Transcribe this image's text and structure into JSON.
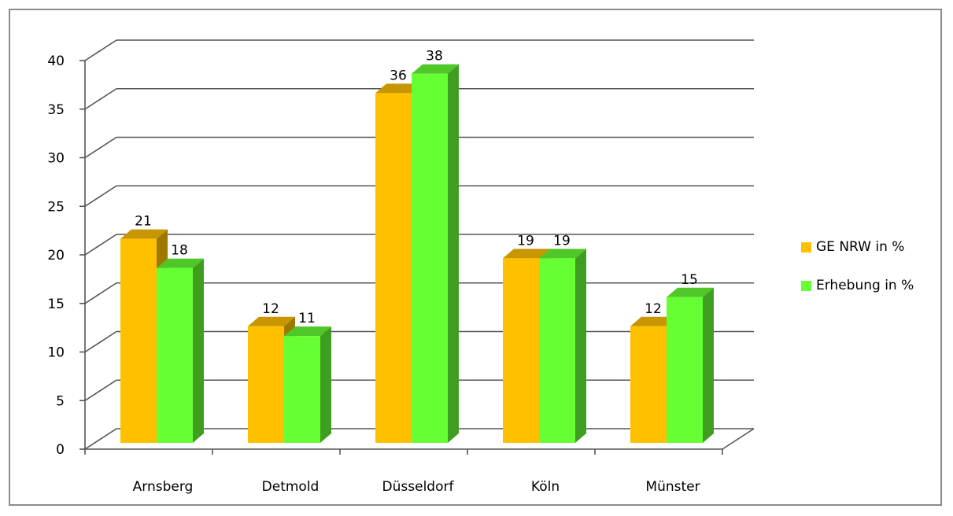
{
  "chart_data": {
    "type": "bar",
    "style": "3d-clustered-column",
    "categories": [
      "Arnsberg",
      "Detmold",
      "Düsseldorf",
      "Köln",
      "Münster"
    ],
    "series": [
      {
        "name": "GE NRW in %",
        "values": [
          21,
          12,
          36,
          19,
          12
        ],
        "labels": [
          "21",
          "12",
          "36",
          "19",
          "12"
        ],
        "color": "#FFC000"
      },
      {
        "name": "Erhebung in %",
        "values": [
          18,
          11,
          38,
          19,
          15
        ],
        "labels": [
          "18",
          "11",
          "38",
          "19",
          "15"
        ],
        "color": "#66FF33"
      }
    ],
    "ylim": [
      0,
      40
    ],
    "yticks": [
      "0",
      "5",
      "10",
      "15",
      "20",
      "25",
      "30",
      "35",
      "40"
    ],
    "title": "",
    "xlabel": "",
    "ylabel": "",
    "grid": true,
    "legend_position": "right"
  }
}
